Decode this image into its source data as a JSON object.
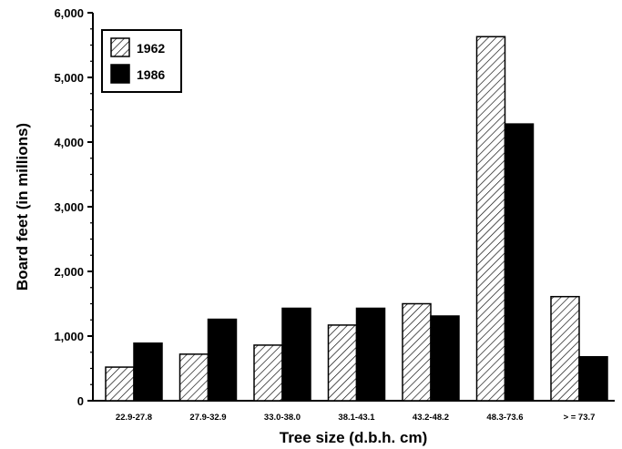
{
  "chart_data": {
    "type": "bar",
    "title": "",
    "xlabel": "Tree size (d.b.h. cm)",
    "ylabel": "Board feet (in millions)",
    "categories": [
      "22.9-27.8",
      "27.9-32.9",
      "33.0-38.0",
      "38.1-43.1",
      "43.2-48.2",
      "48.3-73.6",
      "> = 73.7"
    ],
    "series": [
      {
        "name": "1962",
        "values": [
          520,
          720,
          860,
          1170,
          1500,
          5630,
          1610
        ],
        "pattern": "diagonal-hatch"
      },
      {
        "name": "1986",
        "values": [
          890,
          1260,
          1430,
          1430,
          1310,
          4280,
          680
        ],
        "pattern": "solid-black"
      }
    ],
    "ylim": [
      0,
      6000
    ],
    "yticks": [
      0,
      1000,
      2000,
      3000,
      4000,
      5000,
      6000
    ],
    "ytick_labels": [
      "0",
      "1,000",
      "2,000",
      "3,000",
      "4,000",
      "5,000",
      "6,000"
    ],
    "grid": false,
    "legend_position": "top-left"
  }
}
